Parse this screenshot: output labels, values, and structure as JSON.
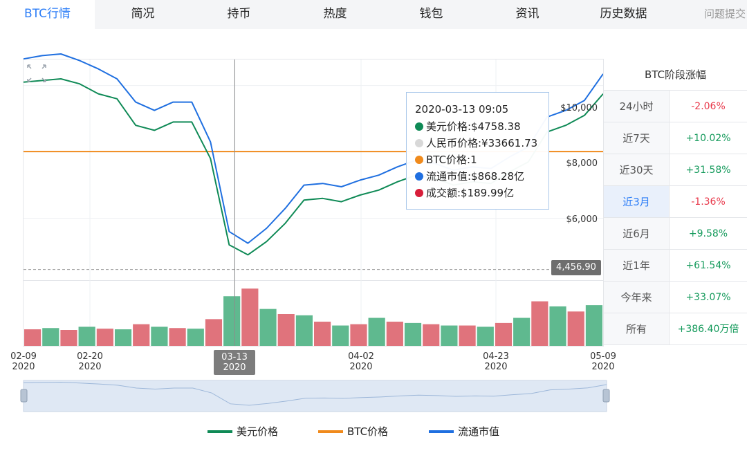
{
  "tabs": [
    {
      "label": "BTC行情",
      "active": true
    },
    {
      "label": "简况"
    },
    {
      "label": "持币"
    },
    {
      "label": "热度"
    },
    {
      "label": "钱包"
    },
    {
      "label": "资讯"
    },
    {
      "label": "历史数据"
    },
    {
      "label": "问题提交"
    }
  ],
  "stats": {
    "title": "BTC阶段涨幅",
    "rows": [
      {
        "label": "24小时",
        "value": "-2.06%",
        "trend": "down"
      },
      {
        "label": "近7天",
        "value": "+10.02%",
        "trend": "up"
      },
      {
        "label": "近30天",
        "value": "+31.58%",
        "trend": "up"
      },
      {
        "label": "近3月",
        "value": "-1.36%",
        "trend": "down",
        "active": true
      },
      {
        "label": "近6月",
        "value": "+9.58%",
        "trend": "up"
      },
      {
        "label": "近1年",
        "value": "+61.54%",
        "trend": "up"
      },
      {
        "label": "今年来",
        "value": "+33.07%",
        "trend": "up"
      },
      {
        "label": "所有",
        "value": "+386.40万倍",
        "trend": "up"
      }
    ]
  },
  "tooltip": {
    "time": "2020-03-13 09:05",
    "rows": [
      {
        "text": "美元价格:$4758.38",
        "color": "#0f8a56"
      },
      {
        "text": "人民币价格:¥33661.73",
        "color": "#d8d8d8"
      },
      {
        "text": "BTC价格:1",
        "color": "#f08a1c"
      },
      {
        "text": "流通市值:$868.28亿",
        "color": "#1f6fe0"
      },
      {
        "text": "成交额:$189.99亿",
        "color": "#d81e3a"
      }
    ]
  },
  "price_tag": "4,456.90",
  "legend": [
    {
      "label": "美元价格",
      "color": "#0f8a56"
    },
    {
      "label": "BTC价格",
      "color": "#f08a1c"
    },
    {
      "label": "流通市值",
      "color": "#1f6fe0"
    }
  ],
  "colors": {
    "usd": "#0f8a56",
    "mcap": "#1f6fe0",
    "btc": "#f08a1c",
    "vol_up": "#5fb98f",
    "vol_down": "#e0737c"
  },
  "chart_data": {
    "type": "line",
    "x_ticks": [
      {
        "date": "02-09",
        "year": "2020"
      },
      {
        "date": "02-20",
        "year": "2020"
      },
      {
        "date": "03-13",
        "year": "2020",
        "highlight": true
      },
      {
        "date": "04-02",
        "year": "2020"
      },
      {
        "date": "04-23",
        "year": "2020"
      },
      {
        "date": "05-09",
        "year": "2020"
      }
    ],
    "y_ticks": [
      "$10,000",
      "$8,000",
      "$6,000"
    ],
    "y_range": [
      4200,
      10700
    ],
    "btc_price_level": 8010,
    "dates": [
      "2020-02-09",
      "2020-02-12",
      "2020-02-15",
      "2020-02-18",
      "2020-02-21",
      "2020-02-24",
      "2020-02-27",
      "2020-03-01",
      "2020-03-04",
      "2020-03-07",
      "2020-03-10",
      "2020-03-12",
      "2020-03-13",
      "2020-03-16",
      "2020-03-19",
      "2020-03-22",
      "2020-03-25",
      "2020-03-28",
      "2020-03-31",
      "2020-04-03",
      "2020-04-06",
      "2020-04-09",
      "2020-04-12",
      "2020-04-15",
      "2020-04-18",
      "2020-04-21",
      "2020-04-24",
      "2020-04-27",
      "2020-04-30",
      "2020-05-03",
      "2020-05-06",
      "2020-05-09"
    ],
    "series": [
      {
        "name": "美元价格",
        "values": [
          10100,
          10150,
          10200,
          10050,
          9750,
          9600,
          8800,
          8650,
          8900,
          8900,
          7800,
          5200,
          4900,
          5300,
          5850,
          6550,
          6600,
          6500,
          6700,
          6850,
          7100,
          7300,
          7200,
          7000,
          7100,
          7050,
          7400,
          7700,
          8600,
          8800,
          9100,
          9750
        ]
      },
      {
        "name": "流通市值",
        "values": [
          10800,
          10900,
          10950,
          10750,
          10500,
          10200,
          9500,
          9250,
          9500,
          9500,
          8300,
          5600,
          5250,
          5700,
          6300,
          7000,
          7050,
          6950,
          7150,
          7300,
          7550,
          7750,
          7650,
          7450,
          7550,
          7500,
          7850,
          8150,
          9050,
          9250,
          9550,
          10350
        ]
      }
    ],
    "volume": [
      2.6,
      2.8,
      2.5,
      3.0,
      2.7,
      2.6,
      3.4,
      3.0,
      2.8,
      2.7,
      4.2,
      7.8,
      9.0,
      5.8,
      5.0,
      4.8,
      3.8,
      3.2,
      3.4,
      4.4,
      3.8,
      3.6,
      3.4,
      3.2,
      3.2,
      3.0,
      3.6,
      4.4,
      7.0,
      6.2,
      5.4,
      6.4
    ],
    "price_line_label": "4,456.90"
  }
}
